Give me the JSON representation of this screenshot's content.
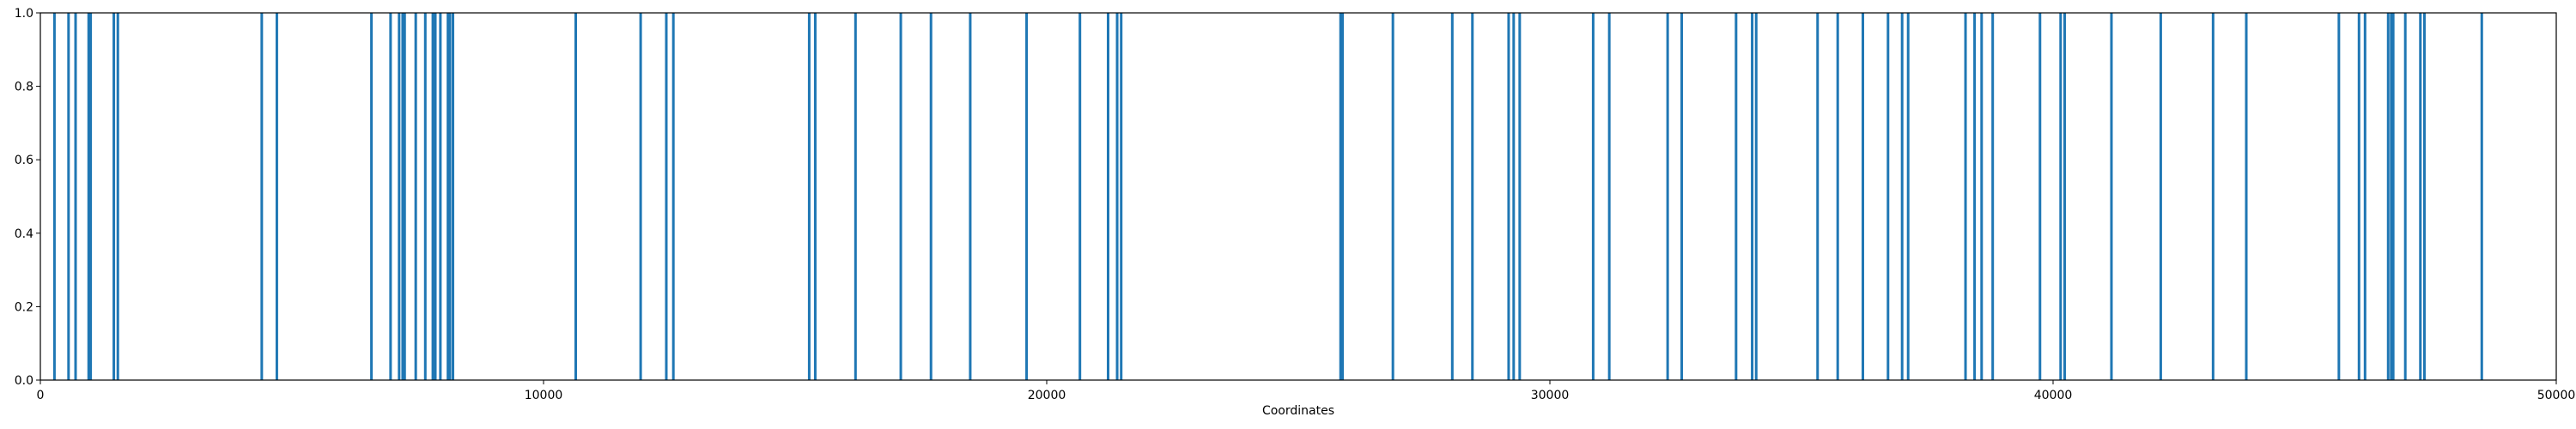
{
  "chart_data": {
    "type": "bar",
    "title": "",
    "xlabel": "Coordinates",
    "ylabel": "",
    "xlim": [
      0,
      50000
    ],
    "ylim": [
      0,
      1.0
    ],
    "x_ticks": [
      0,
      10000,
      20000,
      30000,
      40000,
      50000
    ],
    "x_tick_labels": [
      "0",
      "10000",
      "20000",
      "30000",
      "40000",
      "50000"
    ],
    "y_ticks": [
      0.0,
      0.2,
      0.4,
      0.6,
      0.8,
      1.0
    ],
    "y_tick_labels": [
      "0.0",
      "0.2",
      "0.4",
      "0.6",
      "0.8",
      "1.0"
    ],
    "grid": false,
    "bar_color": "#1f77b4",
    "bar_value": 1.0,
    "positions": [
      280,
      560,
      700,
      960,
      1000,
      1460,
      1540,
      4400,
      4700,
      6580,
      6960,
      7130,
      7200,
      7240,
      7460,
      7650,
      7800,
      7850,
      7950,
      8100,
      8140,
      8200,
      10640,
      11930,
      12440,
      12580,
      15280,
      15400,
      16200,
      17100,
      17700,
      18480,
      19600,
      20660,
      21220,
      21400,
      21480,
      25840,
      25880,
      26880,
      28060,
      28460,
      29180,
      29280,
      29400,
      30860,
      31180,
      32340,
      32620,
      33700,
      34020,
      34100,
      35320,
      35720,
      36220,
      36720,
      37000,
      37120,
      38260,
      38440,
      38580,
      38800,
      39740,
      40150,
      40230,
      41160,
      42140,
      43180,
      43840,
      45680,
      46080,
      46200,
      46660,
      46720,
      46760,
      47000,
      47300,
      47380,
      48520
    ]
  }
}
